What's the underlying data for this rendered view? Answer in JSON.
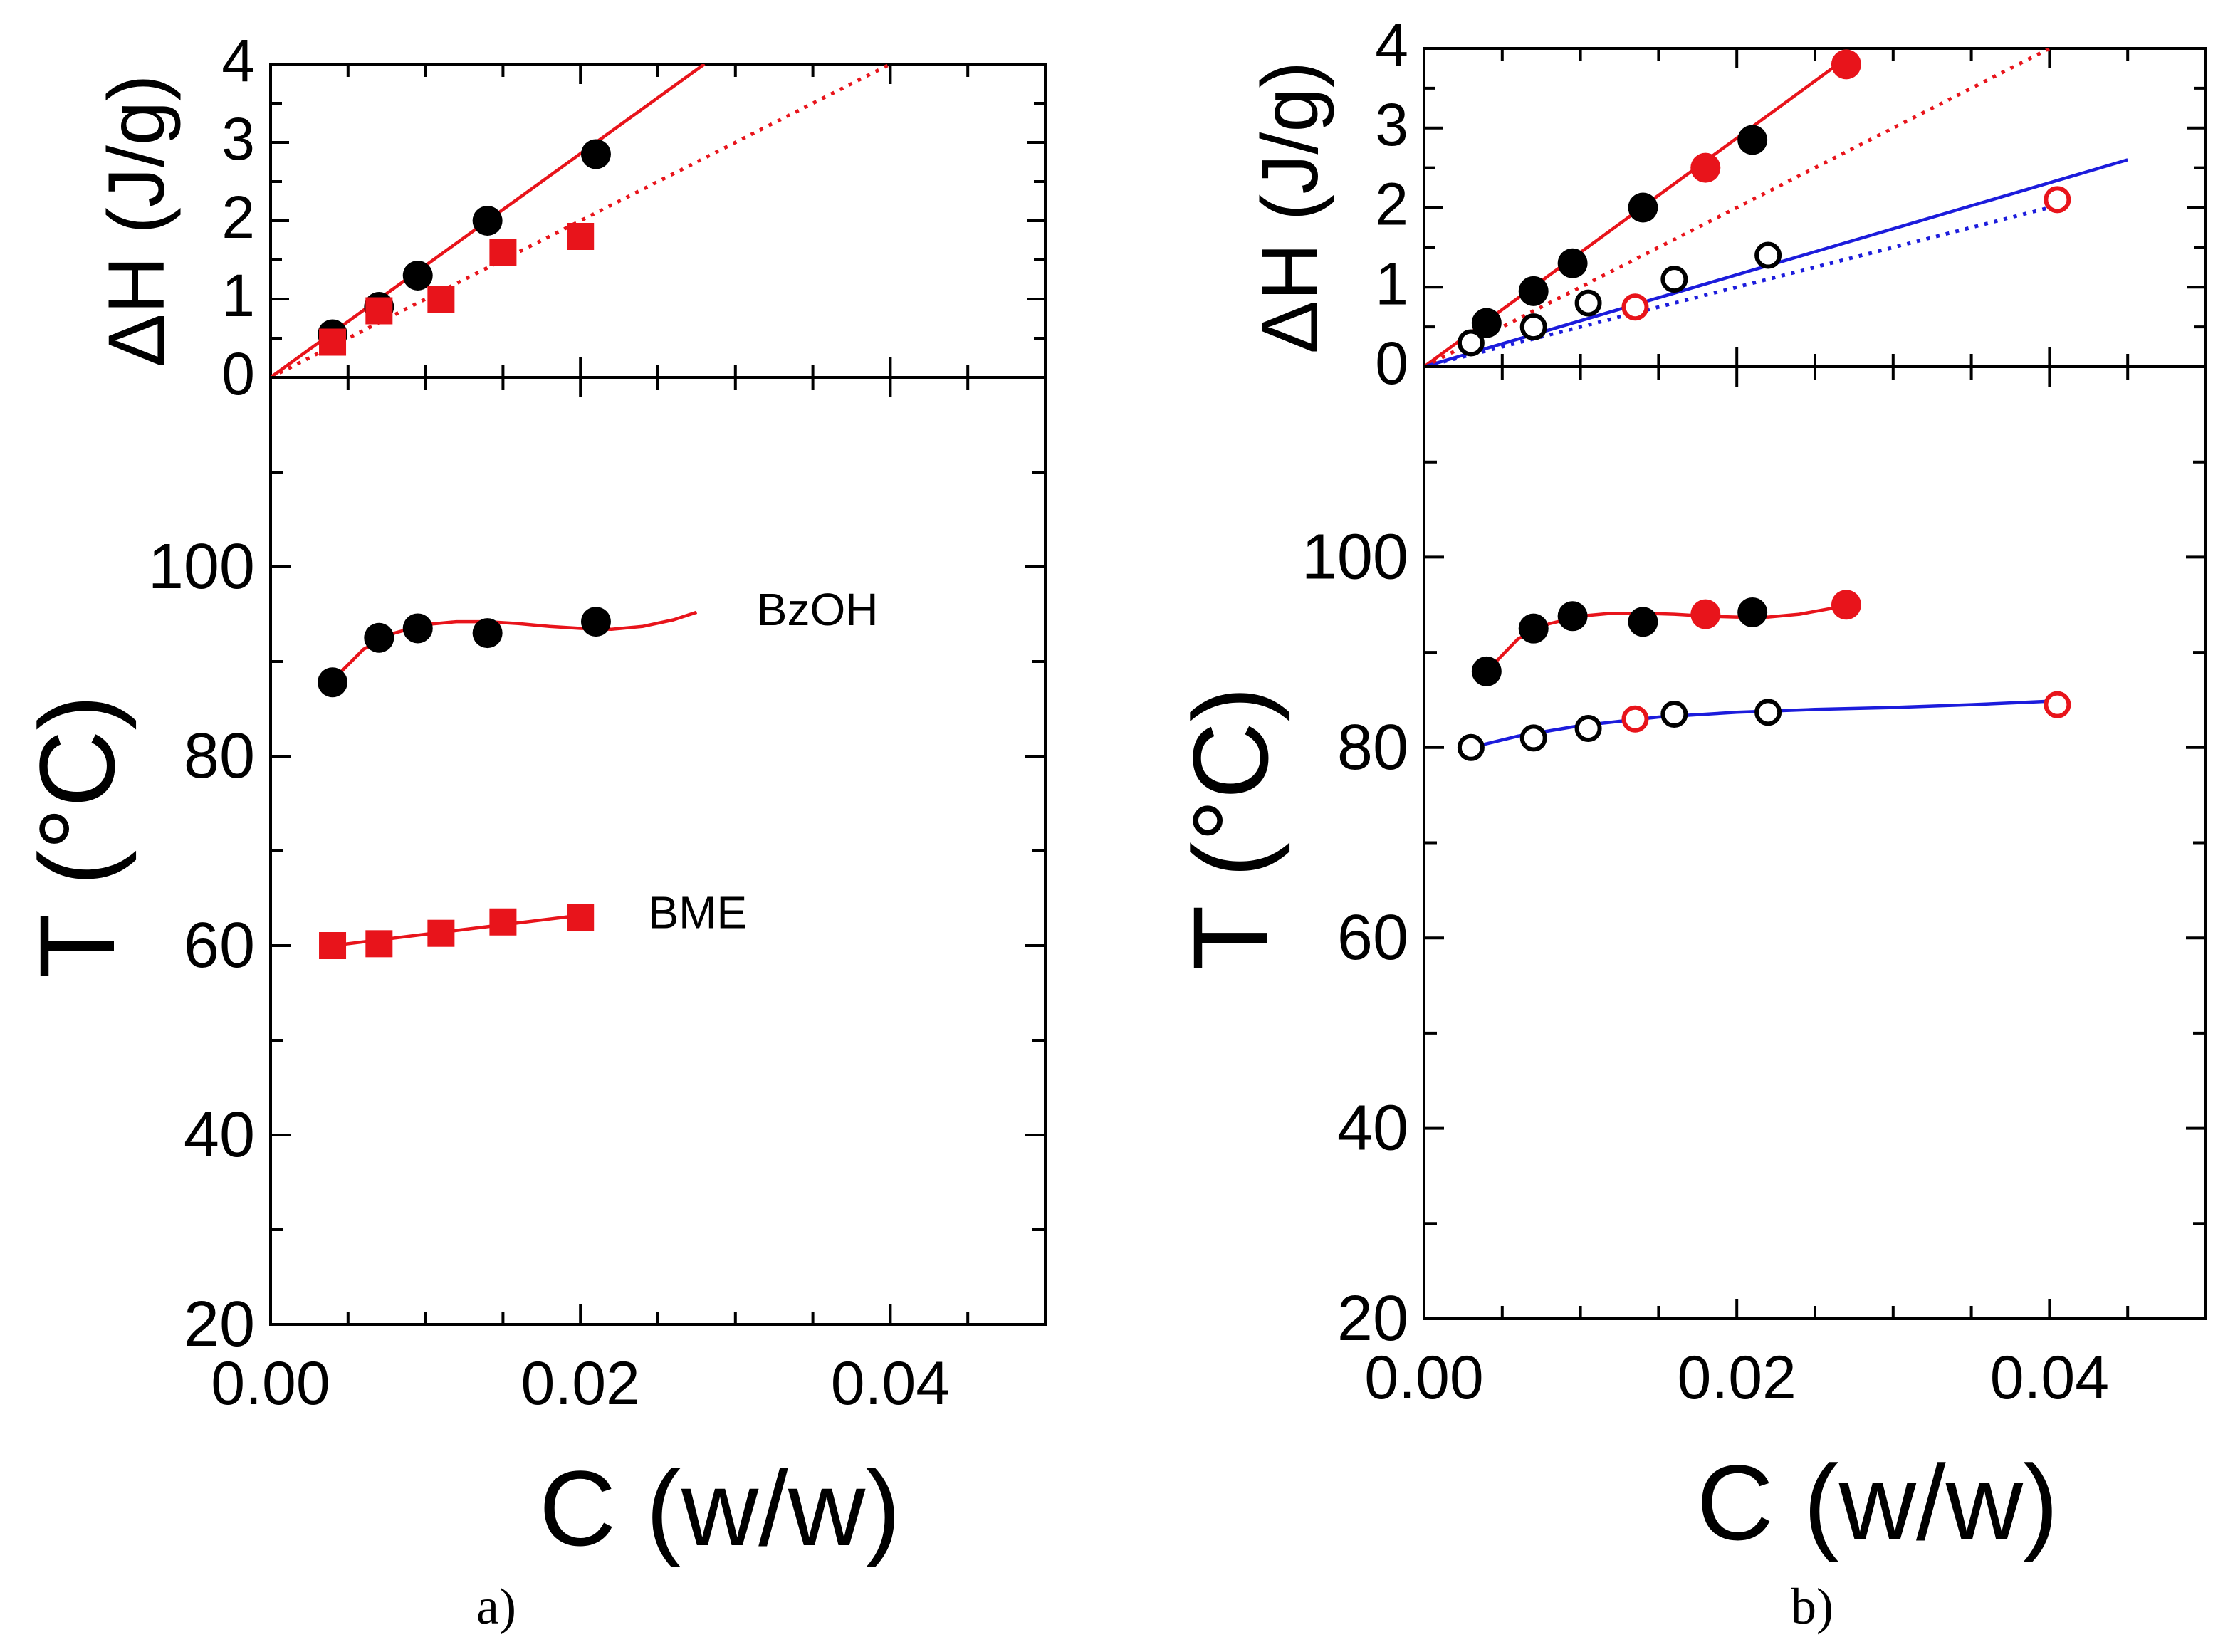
{
  "colors": {
    "black": "#000000",
    "red": "#e8141b",
    "blue": "#1c1cdc"
  },
  "figure": {
    "caption_a": "a)",
    "caption_b": "b)"
  },
  "chart_data": [
    {
      "type": "scatter",
      "panel": "a-top",
      "title": "",
      "xlabel": "",
      "ylabel": "ΔH (J/g)",
      "xlim": [
        0,
        0.05
      ],
      "ylim": [
        0,
        4
      ],
      "yticks": [
        "0",
        "1",
        "2",
        "3",
        "4"
      ],
      "series": [
        {
          "name": "BzOH",
          "marker": "circle-filled",
          "color": "#000000",
          "x": [
            0.004,
            0.007,
            0.0095,
            0.014,
            0.021
          ],
          "y": [
            0.55,
            0.9,
            1.3,
            2.0,
            2.85
          ],
          "fit": {
            "style": "solid",
            "color": "#e8141b",
            "x": [
              0.0,
              0.028
            ],
            "y": [
              0.0,
              4.0
            ]
          }
        },
        {
          "name": "BME",
          "marker": "square-filled",
          "color": "#e8141b",
          "x": [
            0.004,
            0.007,
            0.011,
            0.015,
            0.02
          ],
          "y": [
            0.45,
            0.85,
            1.0,
            1.6,
            1.8
          ],
          "fit": {
            "style": "dotted",
            "color": "#e8141b",
            "x": [
              0.0,
              0.04
            ],
            "y": [
              0.0,
              4.0
            ]
          }
        }
      ]
    },
    {
      "type": "scatter",
      "panel": "a-bottom",
      "title": "",
      "xlabel": "C (w/w)",
      "ylabel": "T (°C)",
      "xlim": [
        0,
        0.05
      ],
      "ylim": [
        20,
        120
      ],
      "xticks": [
        "0.00",
        "0.02",
        "0.04"
      ],
      "yticks": [
        "20",
        "40",
        "60",
        "80",
        "100"
      ],
      "annotations": [
        {
          "text": "BzOH",
          "x": 0.03,
          "y": 95.5
        },
        {
          "text": "BME",
          "x": 0.023,
          "y": 63.5
        }
      ],
      "series": [
        {
          "name": "BzOH",
          "marker": "circle-filled",
          "color": "#000000",
          "x": [
            0.004,
            0.007,
            0.0095,
            0.014,
            0.021
          ],
          "y": [
            87.8,
            92.5,
            93.5,
            93.0,
            94.2
          ],
          "fit": {
            "style": "solid",
            "color": "#e8141b",
            "x": [
              0.004,
              0.006,
              0.008,
              0.01,
              0.012,
              0.014,
              0.016,
              0.018,
              0.02,
              0.022,
              0.024,
              0.026,
              0.0275
            ],
            "y": [
              88.0,
              91.3,
              93.0,
              93.9,
              94.2,
              94.2,
              94.0,
              93.7,
              93.5,
              93.4,
              93.7,
              94.4,
              95.2
            ]
          }
        },
        {
          "name": "BME",
          "marker": "square-filled",
          "color": "#e8141b",
          "x": [
            0.004,
            0.007,
            0.011,
            0.015,
            0.02
          ],
          "y": [
            60.0,
            60.2,
            61.3,
            62.5,
            63.0
          ],
          "fit": {
            "style": "solid",
            "color": "#e8141b",
            "x": [
              0.004,
              0.02
            ],
            "y": [
              60.0,
              63.2
            ]
          }
        }
      ]
    },
    {
      "type": "scatter",
      "panel": "b-top",
      "title": "",
      "xlabel": "",
      "ylabel": "ΔH (J/g)",
      "xlim": [
        0,
        0.05
      ],
      "ylim": [
        0,
        4
      ],
      "yticks": [
        "0",
        "1",
        "2",
        "3",
        "4"
      ],
      "series": [
        {
          "name": "black filled",
          "marker": "circle-filled",
          "color": "#000000",
          "x": [
            0.004,
            0.007,
            0.0095,
            0.014,
            0.021
          ],
          "y": [
            0.55,
            0.95,
            1.3,
            2.0,
            2.85
          ]
        },
        {
          "name": "red filled",
          "marker": "circle-filled",
          "color": "#e8141b",
          "x": [
            0.018,
            0.027
          ],
          "y": [
            2.5,
            3.8
          ],
          "fit": {
            "style": "solid",
            "color": "#e8141b",
            "x": [
              0.0,
              0.0275
            ],
            "y": [
              0.0,
              3.95
            ]
          }
        },
        {
          "name": "black open",
          "marker": "circle-open",
          "color": "#000000",
          "x": [
            0.003,
            0.007,
            0.0105,
            0.016,
            0.022
          ],
          "y": [
            0.3,
            0.5,
            0.8,
            1.1,
            1.4
          ],
          "fit": {
            "style": "solid",
            "color": "#1c1cdc",
            "x": [
              0.0,
              0.045
            ],
            "y": [
              0.0,
              2.6
            ]
          }
        },
        {
          "name": "red open",
          "marker": "circle-open",
          "color": "#e8141b",
          "x": [
            0.0135,
            0.0405
          ],
          "y": [
            0.75,
            2.1
          ],
          "fit": {
            "style": "dotted",
            "color": "#1c1cdc",
            "x": [
              0.0,
              0.041
            ],
            "y": [
              0.0,
              2.05
            ]
          }
        },
        {
          "name": "red dotted fit",
          "marker": "none",
          "color": "#e8141b",
          "x": [],
          "y": [],
          "fit": {
            "style": "dotted",
            "color": "#e8141b",
            "x": [
              0.0,
              0.04
            ],
            "y": [
              0.0,
              4.0
            ]
          }
        }
      ]
    },
    {
      "type": "scatter",
      "panel": "b-bottom",
      "title": "",
      "xlabel": "C (w/w)",
      "ylabel": "T (°C)",
      "xlim": [
        0,
        0.05
      ],
      "ylim": [
        20,
        120
      ],
      "xticks": [
        "0.00",
        "0.02",
        "0.04"
      ],
      "yticks": [
        "20",
        "40",
        "60",
        "80",
        "100"
      ],
      "series": [
        {
          "name": "black filled",
          "marker": "circle-filled",
          "color": "#000000",
          "x": [
            0.004,
            0.007,
            0.0095,
            0.014,
            0.021
          ],
          "y": [
            88.0,
            92.5,
            93.8,
            93.2,
            94.2
          ]
        },
        {
          "name": "red filled",
          "marker": "circle-filled",
          "color": "#e8141b",
          "x": [
            0.018,
            0.027
          ],
          "y": [
            94.0,
            95.0
          ],
          "fit": {
            "style": "solid",
            "color": "#e8141b",
            "x": [
              0.004,
              0.006,
              0.008,
              0.01,
              0.012,
              0.014,
              0.016,
              0.018,
              0.02,
              0.022,
              0.024,
              0.026,
              0.027
            ],
            "y": [
              88.0,
              91.4,
              93.0,
              93.8,
              94.1,
              94.1,
              94.0,
              93.8,
              93.7,
              93.7,
              94.0,
              94.6,
              95.0
            ]
          }
        },
        {
          "name": "black open",
          "marker": "circle-open",
          "color": "#000000",
          "x": [
            0.003,
            0.007,
            0.0105,
            0.016,
            0.022
          ],
          "y": [
            80.0,
            81.0,
            82.0,
            83.5,
            83.7
          ]
        },
        {
          "name": "red open",
          "marker": "circle-open",
          "color": "#e8141b",
          "x": [
            0.0135,
            0.0405
          ],
          "y": [
            83.0,
            84.5
          ],
          "fit": {
            "style": "solid",
            "color": "#1c1cdc",
            "x": [
              0.003,
              0.006,
              0.01,
              0.015,
              0.02,
              0.025,
              0.03,
              0.035,
              0.0405
            ],
            "y": [
              80.0,
              81.2,
              82.3,
              83.2,
              83.7,
              84.0,
              84.2,
              84.5,
              84.9
            ]
          }
        }
      ]
    }
  ]
}
